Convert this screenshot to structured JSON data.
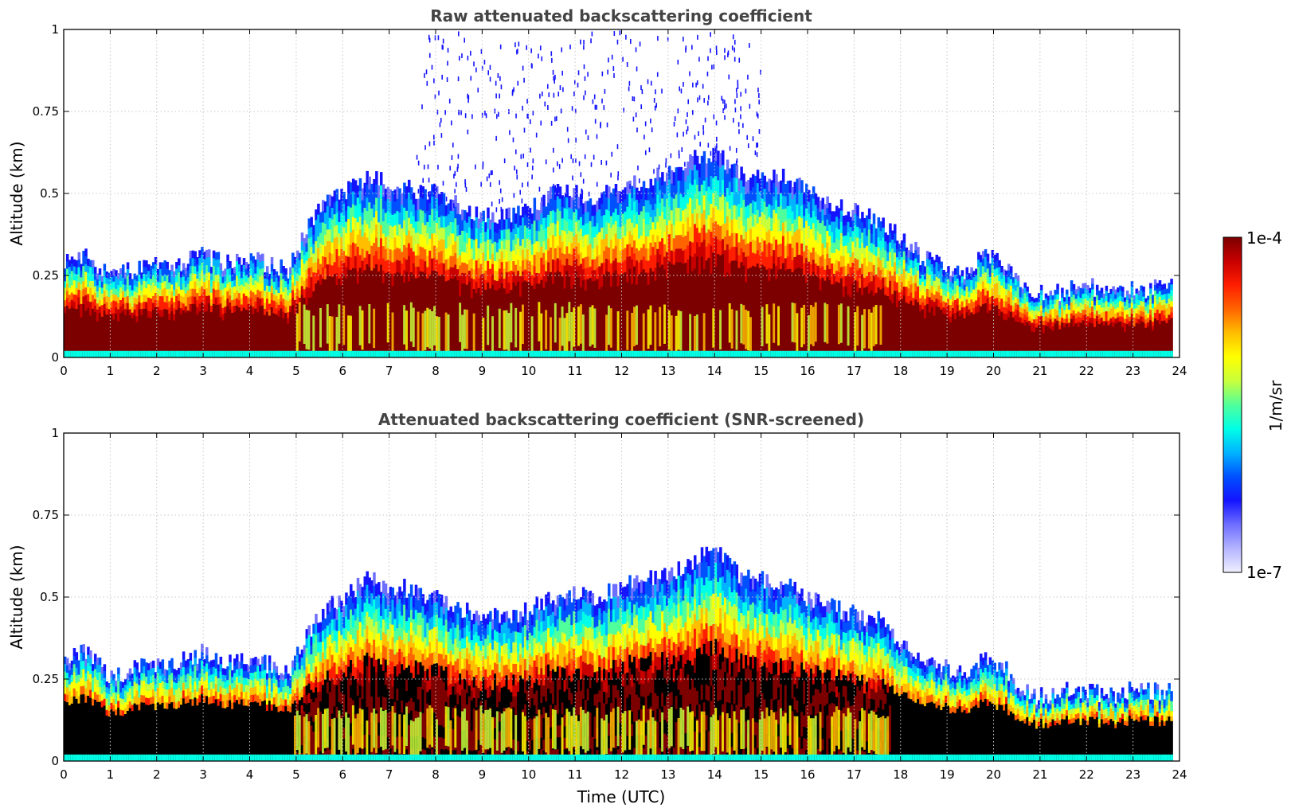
{
  "chart_data": [
    {
      "type": "heatmap",
      "title": "Raw attenuated backscattering coefficient",
      "xlabel": "",
      "ylabel": "Altitude (km)",
      "xlim": [
        0,
        24
      ],
      "ylim": [
        0,
        1
      ],
      "xticks": [
        "0",
        "1",
        "2",
        "3",
        "4",
        "5",
        "6",
        "7",
        "8",
        "9",
        "10",
        "11",
        "12",
        "13",
        "14",
        "15",
        "16",
        "17",
        "18",
        "19",
        "20",
        "21",
        "22",
        "23",
        "24"
      ],
      "yticks": [
        "0",
        "0.25",
        "0.5",
        "0.75",
        "1"
      ],
      "grid": true,
      "data_end_hour": 23.85,
      "screened": false,
      "layer_top_km": [
        {
          "t": 0,
          "top": 0.3
        },
        {
          "t": 0.5,
          "top": 0.32
        },
        {
          "t": 1,
          "top": 0.24
        },
        {
          "t": 1.5,
          "top": 0.27
        },
        {
          "t": 2,
          "top": 0.28
        },
        {
          "t": 2.5,
          "top": 0.29
        },
        {
          "t": 3,
          "top": 0.31
        },
        {
          "t": 3.5,
          "top": 0.29
        },
        {
          "t": 4,
          "top": 0.3
        },
        {
          "t": 4.5,
          "top": 0.28
        },
        {
          "t": 4.85,
          "top": 0.26
        },
        {
          "t": 5,
          "top": 0.33
        },
        {
          "t": 5.5,
          "top": 0.45
        },
        {
          "t": 6,
          "top": 0.5
        },
        {
          "t": 6.5,
          "top": 0.55
        },
        {
          "t": 7,
          "top": 0.53
        },
        {
          "t": 7.5,
          "top": 0.51
        },
        {
          "t": 8,
          "top": 0.5
        },
        {
          "t": 8.5,
          "top": 0.46
        },
        {
          "t": 9,
          "top": 0.44
        },
        {
          "t": 9.5,
          "top": 0.43
        },
        {
          "t": 10,
          "top": 0.46
        },
        {
          "t": 10.5,
          "top": 0.5
        },
        {
          "t": 11,
          "top": 0.5
        },
        {
          "t": 11.5,
          "top": 0.49
        },
        {
          "t": 12,
          "top": 0.52
        },
        {
          "t": 12.5,
          "top": 0.54
        },
        {
          "t": 13,
          "top": 0.56
        },
        {
          "t": 13.5,
          "top": 0.6
        },
        {
          "t": 14,
          "top": 0.62
        },
        {
          "t": 14.5,
          "top": 0.57
        },
        {
          "t": 15,
          "top": 0.55
        },
        {
          "t": 15.5,
          "top": 0.56
        },
        {
          "t": 16,
          "top": 0.5
        },
        {
          "t": 16.5,
          "top": 0.47
        },
        {
          "t": 17,
          "top": 0.45
        },
        {
          "t": 17.5,
          "top": 0.42
        },
        {
          "t": 18,
          "top": 0.37
        },
        {
          "t": 18.5,
          "top": 0.3
        },
        {
          "t": 19,
          "top": 0.27
        },
        {
          "t": 19.5,
          "top": 0.26
        },
        {
          "t": 19.8,
          "top": 0.33
        },
        {
          "t": 20.2,
          "top": 0.28
        },
        {
          "t": 20.6,
          "top": 0.22
        },
        {
          "t": 21,
          "top": 0.2
        },
        {
          "t": 21.5,
          "top": 0.2
        },
        {
          "t": 22,
          "top": 0.22
        },
        {
          "t": 22.5,
          "top": 0.19
        },
        {
          "t": 23,
          "top": 0.21
        },
        {
          "t": 23.85,
          "top": 0.21
        }
      ]
    },
    {
      "type": "heatmap",
      "title": "Attenuated backscattering coefficient (SNR-screened)",
      "xlabel": "Time (UTC)",
      "ylabel": "Altitude (km)",
      "xlim": [
        0,
        24
      ],
      "ylim": [
        0,
        1
      ],
      "xticks": [
        "0",
        "1",
        "2",
        "3",
        "4",
        "5",
        "6",
        "7",
        "8",
        "9",
        "10",
        "11",
        "12",
        "13",
        "14",
        "15",
        "16",
        "17",
        "18",
        "19",
        "20",
        "21",
        "22",
        "23",
        "24"
      ],
      "yticks": [
        "0",
        "0.25",
        "0.5",
        "0.75",
        "1"
      ],
      "grid": true,
      "data_end_hour": 23.85,
      "screened": true,
      "layer_top_km": [
        {
          "t": 0,
          "top": 0.32
        },
        {
          "t": 0.5,
          "top": 0.33
        },
        {
          "t": 1,
          "top": 0.25
        },
        {
          "t": 1.5,
          "top": 0.28
        },
        {
          "t": 2,
          "top": 0.29
        },
        {
          "t": 2.5,
          "top": 0.3
        },
        {
          "t": 3,
          "top": 0.33
        },
        {
          "t": 3.5,
          "top": 0.3
        },
        {
          "t": 4,
          "top": 0.31
        },
        {
          "t": 4.5,
          "top": 0.29
        },
        {
          "t": 4.85,
          "top": 0.26
        },
        {
          "t": 5,
          "top": 0.33
        },
        {
          "t": 5.5,
          "top": 0.45
        },
        {
          "t": 6,
          "top": 0.5
        },
        {
          "t": 6.5,
          "top": 0.55
        },
        {
          "t": 7,
          "top": 0.54
        },
        {
          "t": 7.5,
          "top": 0.52
        },
        {
          "t": 8,
          "top": 0.5
        },
        {
          "t": 8.5,
          "top": 0.46
        },
        {
          "t": 9,
          "top": 0.45
        },
        {
          "t": 9.5,
          "top": 0.43
        },
        {
          "t": 10,
          "top": 0.46
        },
        {
          "t": 10.5,
          "top": 0.5
        },
        {
          "t": 11,
          "top": 0.51
        },
        {
          "t": 11.5,
          "top": 0.5
        },
        {
          "t": 12,
          "top": 0.53
        },
        {
          "t": 12.5,
          "top": 0.55
        },
        {
          "t": 13,
          "top": 0.57
        },
        {
          "t": 13.5,
          "top": 0.6
        },
        {
          "t": 14,
          "top": 0.65
        },
        {
          "t": 14.5,
          "top": 0.57
        },
        {
          "t": 15,
          "top": 0.55
        },
        {
          "t": 15.5,
          "top": 0.55
        },
        {
          "t": 16,
          "top": 0.5
        },
        {
          "t": 16.5,
          "top": 0.47
        },
        {
          "t": 17,
          "top": 0.45
        },
        {
          "t": 17.5,
          "top": 0.43
        },
        {
          "t": 18,
          "top": 0.37
        },
        {
          "t": 18.5,
          "top": 0.31
        },
        {
          "t": 19,
          "top": 0.28
        },
        {
          "t": 19.5,
          "top": 0.27
        },
        {
          "t": 19.8,
          "top": 0.33
        },
        {
          "t": 20.2,
          "top": 0.29
        },
        {
          "t": 20.6,
          "top": 0.21
        },
        {
          "t": 21,
          "top": 0.2
        },
        {
          "t": 21.5,
          "top": 0.21
        },
        {
          "t": 22,
          "top": 0.22
        },
        {
          "t": 22.5,
          "top": 0.2
        },
        {
          "t": 23,
          "top": 0.22
        },
        {
          "t": 23.85,
          "top": 0.21
        }
      ]
    }
  ],
  "colorbar": {
    "label": "1/m/sr",
    "max_label": "1e-4",
    "min_label": "1e-7",
    "scale": "log",
    "colormap": [
      "#f0f0ff",
      "#b4b4ff",
      "#6e6eff",
      "#1414ff",
      "#0050ff",
      "#00b4ff",
      "#00ffe6",
      "#50ff9b",
      "#c8ff3c",
      "#ffff00",
      "#ffbe00",
      "#ff6400",
      "#ff1e00",
      "#c80000",
      "#7d0000"
    ]
  },
  "colors": {
    "screened_mask": "#000000",
    "axes": "#000000",
    "grid": "#c8c8c8",
    "title": "#444444"
  }
}
